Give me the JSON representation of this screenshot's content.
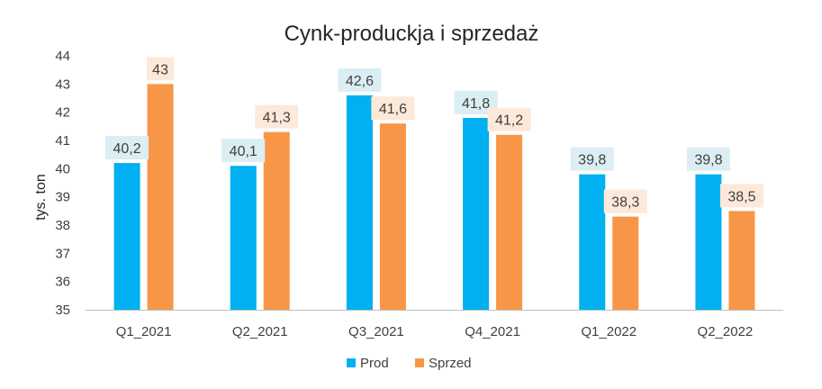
{
  "chart_data": {
    "type": "bar",
    "title": "Cynk-produckja  i  sprzedaż",
    "ylabel": "tys. ton",
    "xlabel": "",
    "ylim": [
      35,
      44
    ],
    "yticks": [
      "35",
      "36",
      "37",
      "38",
      "39",
      "40",
      "41",
      "42",
      "43",
      "44"
    ],
    "categories": [
      "Q1_2021",
      "Q2_2021",
      "Q3_2021",
      "Q4_2021",
      "Q1_2022",
      "Q2_2022"
    ],
    "series": [
      {
        "name": "Prod",
        "color": "#00B0F0",
        "label_bg": "#DAEEF3",
        "values": [
          40.2,
          40.1,
          42.6,
          41.8,
          39.8,
          39.8
        ],
        "labels": [
          "40,2",
          "40,1",
          "42,6",
          "41,8",
          "39,8",
          "39,8"
        ]
      },
      {
        "name": "Sprzed",
        "color": "#F79646",
        "label_bg": "#FDE9D9",
        "values": [
          43,
          41.3,
          41.6,
          41.2,
          38.3,
          38.5
        ],
        "labels": [
          "43",
          "41,3",
          "41,6",
          "41,2",
          "38,3",
          "38,5"
        ]
      }
    ],
    "grid": false,
    "legend_position": "bottom"
  }
}
